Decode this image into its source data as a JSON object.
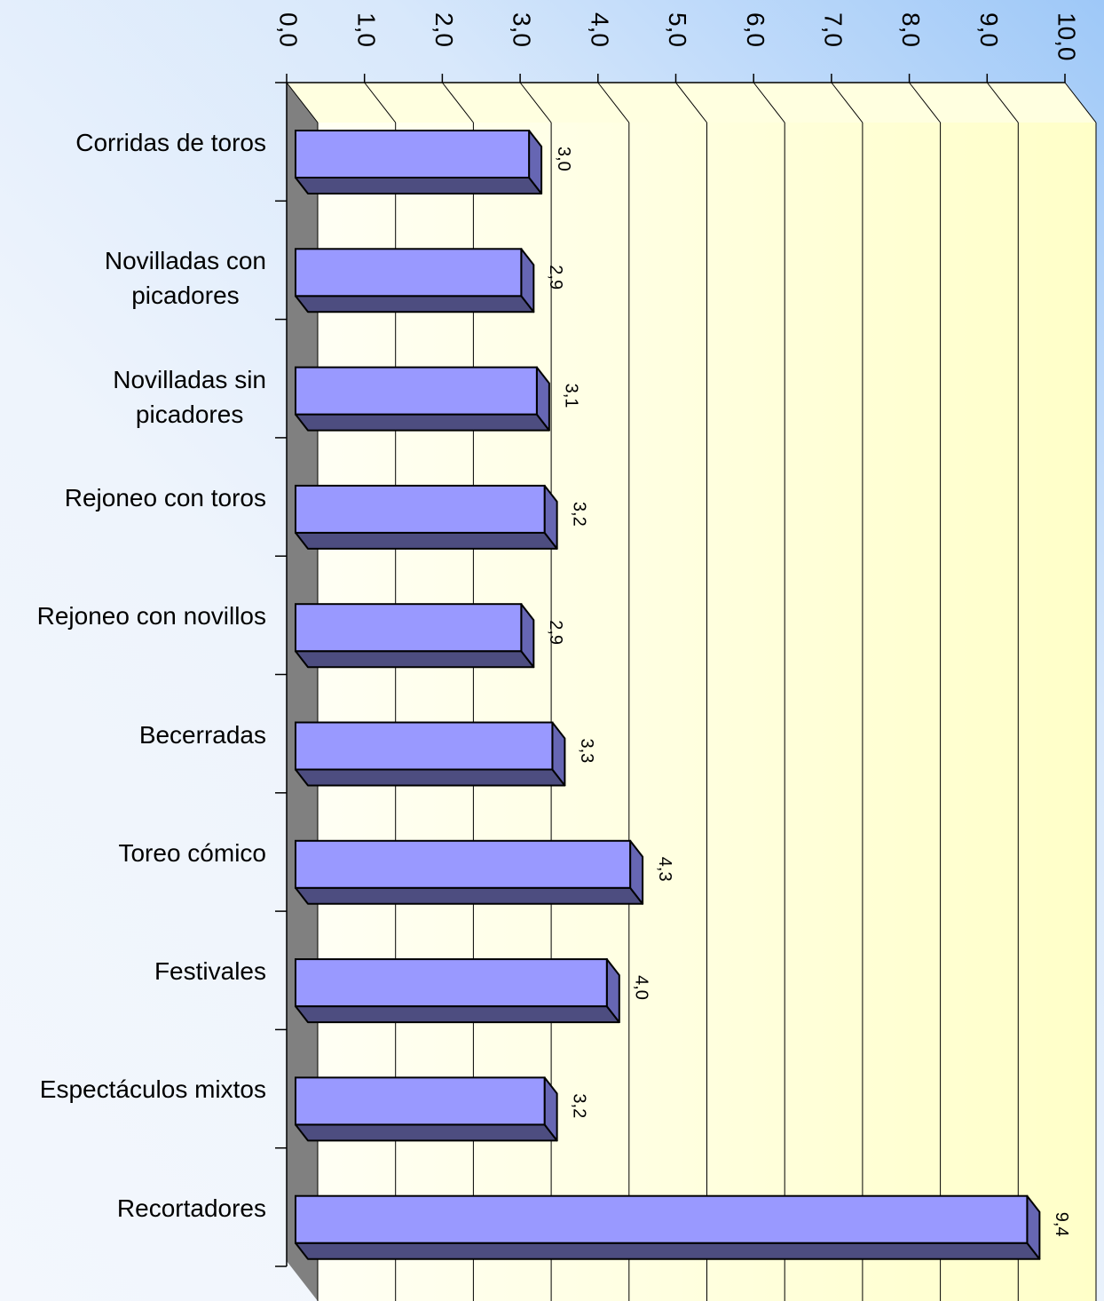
{
  "chart_data": {
    "type": "bar3d_horizontal",
    "categories": [
      "Corridas de toros",
      "Novilladas con\npicadores",
      "Novilladas sin\npicadores",
      "Rejoneo con toros",
      "Rejoneo con novillos",
      "Becerradas",
      "Toreo cómico",
      "Festivales",
      "Espectáculos mixtos",
      "Recortadores"
    ],
    "values": [
      3.0,
      2.9,
      3.1,
      3.2,
      2.9,
      3.3,
      4.3,
      4.0,
      3.2,
      9.4
    ],
    "value_labels": [
      "3,0",
      "2,9",
      "3,1",
      "3,2",
      "2,9",
      "3,3",
      "4,3",
      "4,0",
      "3,2",
      "9,4"
    ],
    "color": "#9999ff",
    "xlim": [
      0,
      10
    ],
    "xticks": [
      {
        "value": 0,
        "label": "0,0"
      },
      {
        "value": 1,
        "label": "1,0"
      },
      {
        "value": 2,
        "label": "2,0"
      },
      {
        "value": 3,
        "label": "3,0"
      },
      {
        "value": 4,
        "label": "4,0"
      },
      {
        "value": 5,
        "label": "5,0"
      },
      {
        "value": 6,
        "label": "6,0"
      },
      {
        "value": 7,
        "label": "7,0"
      },
      {
        "value": 8,
        "label": "8,0"
      },
      {
        "value": 9,
        "label": "9,0"
      },
      {
        "value": 10,
        "label": "10,0"
      }
    ],
    "grid": true
  }
}
